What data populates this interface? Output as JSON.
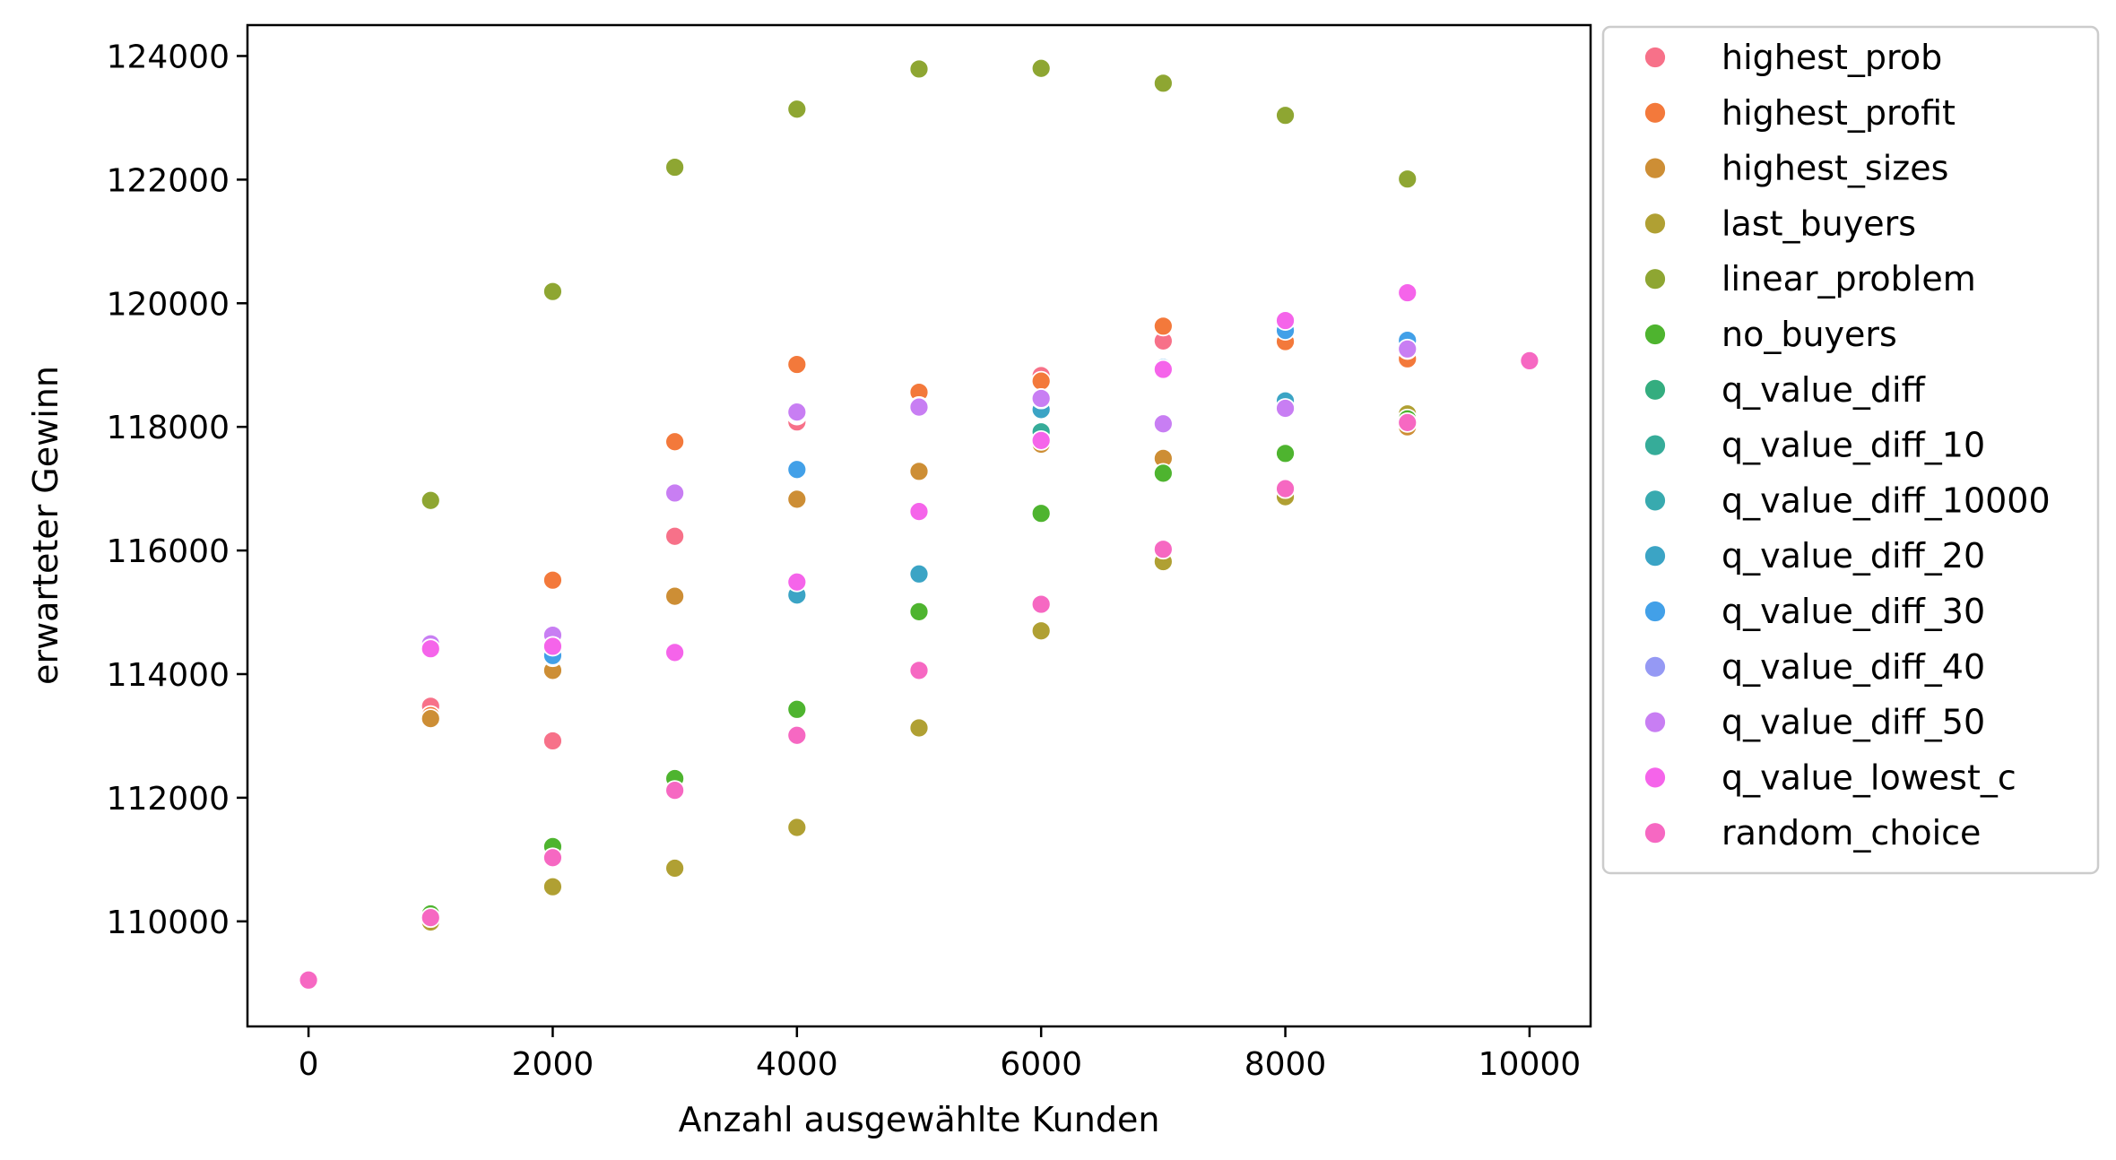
{
  "chart_data": {
    "type": "scatter",
    "xlabel": "Anzahl ausgewählte Kunden",
    "ylabel": "erwarteter Gewinn",
    "xlim": [
      -500,
      10500
    ],
    "ylim": [
      108300,
      124500
    ],
    "xticks": [
      0,
      2000,
      4000,
      6000,
      8000,
      10000
    ],
    "yticks": [
      110000,
      112000,
      114000,
      116000,
      118000,
      120000,
      122000,
      124000
    ],
    "grid": false,
    "legend_position": "outside-right",
    "series": [
      {
        "name": "highest_prob",
        "color": "#f77189",
        "points": [
          [
            0,
            109050
          ],
          [
            1000,
            113480
          ],
          [
            2000,
            112920
          ],
          [
            3000,
            116230
          ],
          [
            4000,
            118080
          ],
          [
            5000,
            118350
          ],
          [
            6000,
            118830
          ],
          [
            7000,
            119390
          ],
          [
            8000,
            119670
          ],
          [
            9000,
            118080
          ]
        ]
      },
      {
        "name": "highest_profit",
        "color": "#f3793b",
        "points": [
          [
            0,
            109050
          ],
          [
            1000,
            113330
          ],
          [
            2000,
            115520
          ],
          [
            3000,
            117760
          ],
          [
            4000,
            119010
          ],
          [
            5000,
            118560
          ],
          [
            6000,
            118740
          ],
          [
            7000,
            119630
          ],
          [
            8000,
            119380
          ],
          [
            9000,
            119100
          ]
        ]
      },
      {
        "name": "highest_sizes",
        "color": "#cd8e35",
        "points": [
          [
            0,
            109050
          ],
          [
            1000,
            113280
          ],
          [
            2000,
            114060
          ],
          [
            3000,
            115260
          ],
          [
            4000,
            116830
          ],
          [
            5000,
            117280
          ],
          [
            6000,
            117720
          ],
          [
            7000,
            117490
          ],
          [
            8000,
            116900
          ],
          [
            9000,
            118000
          ]
        ]
      },
      {
        "name": "last_buyers",
        "color": "#b0a033",
        "points": [
          [
            0,
            109050
          ],
          [
            1000,
            109990
          ],
          [
            2000,
            110560
          ],
          [
            3000,
            110860
          ],
          [
            4000,
            111520
          ],
          [
            5000,
            113130
          ],
          [
            6000,
            114700
          ],
          [
            7000,
            115820
          ],
          [
            8000,
            116870
          ],
          [
            9000,
            118210
          ]
        ]
      },
      {
        "name": "linear_problem",
        "color": "#8ea632",
        "points": [
          [
            0,
            109050
          ],
          [
            1000,
            116810
          ],
          [
            2000,
            120190
          ],
          [
            3000,
            122200
          ],
          [
            4000,
            123140
          ],
          [
            5000,
            123790
          ],
          [
            6000,
            123800
          ],
          [
            7000,
            123560
          ],
          [
            8000,
            123040
          ],
          [
            9000,
            122010
          ]
        ]
      },
      {
        "name": "no_buyers",
        "color": "#4eb42f",
        "points": [
          [
            0,
            109050
          ],
          [
            1000,
            110120
          ],
          [
            2000,
            111210
          ],
          [
            3000,
            112310
          ],
          [
            4000,
            113430
          ],
          [
            5000,
            115010
          ],
          [
            6000,
            116600
          ],
          [
            7000,
            117250
          ],
          [
            8000,
            117570
          ],
          [
            9000,
            118130
          ]
        ]
      },
      {
        "name": "q_value_diff",
        "color": "#34ad7f",
        "points": [
          [
            0,
            109050
          ],
          [
            1000,
            114450
          ],
          [
            2000,
            114520
          ],
          [
            3000,
            116900
          ],
          [
            4000,
            118190
          ],
          [
            5000,
            118330
          ],
          [
            6000,
            118250
          ],
          [
            7000,
            118970
          ],
          [
            8000,
            119630
          ],
          [
            9000,
            119280
          ]
        ]
      },
      {
        "name": "q_value_diff_10",
        "color": "#36ac99",
        "points": [
          [
            0,
            109050
          ],
          [
            1000,
            114420
          ],
          [
            2000,
            114410
          ],
          [
            3000,
            116910
          ],
          [
            4000,
            118200
          ],
          [
            5000,
            118320
          ],
          [
            6000,
            117920
          ],
          [
            7000,
            118950
          ],
          [
            8000,
            119600
          ],
          [
            9000,
            119300
          ]
        ]
      },
      {
        "name": "q_value_diff_10000",
        "color": "#38aaaf",
        "points": [
          [
            0,
            109050
          ],
          [
            1000,
            114430
          ],
          [
            2000,
            114330
          ],
          [
            3000,
            116900
          ],
          [
            4000,
            115290
          ],
          [
            5000,
            115600
          ],
          [
            6000,
            118270
          ],
          [
            7000,
            118950
          ],
          [
            8000,
            119590
          ],
          [
            9000,
            119320
          ]
        ]
      },
      {
        "name": "q_value_diff_20",
        "color": "#3ba4c5",
        "points": [
          [
            0,
            109050
          ],
          [
            1000,
            114440
          ],
          [
            2000,
            114280
          ],
          [
            3000,
            116910
          ],
          [
            4000,
            115280
          ],
          [
            5000,
            115620
          ],
          [
            6000,
            118280
          ],
          [
            7000,
            118960
          ],
          [
            8000,
            118420
          ],
          [
            9000,
            119330
          ]
        ]
      },
      {
        "name": "q_value_diff_30",
        "color": "#42a0e8",
        "points": [
          [
            0,
            109050
          ],
          [
            1000,
            114470
          ],
          [
            2000,
            114300
          ],
          [
            3000,
            116920
          ],
          [
            4000,
            117310
          ],
          [
            5000,
            118330
          ],
          [
            6000,
            118460
          ],
          [
            7000,
            118960
          ],
          [
            8000,
            119560
          ],
          [
            9000,
            119400
          ]
        ]
      },
      {
        "name": "q_value_diff_40",
        "color": "#9599f4",
        "points": [
          [
            0,
            109050
          ],
          [
            1000,
            114480
          ],
          [
            2000,
            114580
          ],
          [
            3000,
            116920
          ],
          [
            4000,
            118220
          ],
          [
            5000,
            118310
          ],
          [
            6000,
            118450
          ],
          [
            7000,
            118040
          ],
          [
            8000,
            118290
          ],
          [
            9000,
            119250
          ]
        ]
      },
      {
        "name": "q_value_diff_50",
        "color": "#c87ef3",
        "points": [
          [
            0,
            109050
          ],
          [
            1000,
            114490
          ],
          [
            2000,
            114630
          ],
          [
            3000,
            116930
          ],
          [
            4000,
            118240
          ],
          [
            5000,
            118320
          ],
          [
            6000,
            118460
          ],
          [
            7000,
            118050
          ],
          [
            8000,
            118300
          ],
          [
            9000,
            119260
          ]
        ]
      },
      {
        "name": "q_value_lowest_c",
        "color": "#f564ea",
        "points": [
          [
            0,
            109050
          ],
          [
            1000,
            114410
          ],
          [
            2000,
            114450
          ],
          [
            3000,
            114350
          ],
          [
            4000,
            115490
          ],
          [
            5000,
            116630
          ],
          [
            6000,
            117780
          ],
          [
            7000,
            118930
          ],
          [
            8000,
            119720
          ],
          [
            9000,
            120170
          ]
        ]
      },
      {
        "name": "random_choice",
        "color": "#f668c2",
        "points": [
          [
            0,
            109050
          ],
          [
            1000,
            110060
          ],
          [
            2000,
            111030
          ],
          [
            3000,
            112120
          ],
          [
            4000,
            113010
          ],
          [
            5000,
            114060
          ],
          [
            6000,
            115130
          ],
          [
            7000,
            116020
          ],
          [
            8000,
            117000
          ],
          [
            9000,
            118070
          ],
          [
            10000,
            119070
          ]
        ]
      }
    ]
  }
}
